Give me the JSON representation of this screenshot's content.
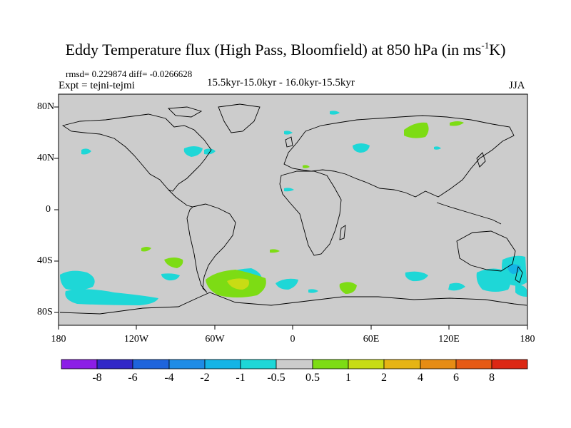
{
  "title": {
    "main": "Eddy Temperature flux (High Pass, Bloomfield) at 850 hPa (in ms",
    "sup": "-1",
    "tail": "K)"
  },
  "stats": "rmsd= 0.229874 diff= -0.0266628",
  "expt": "Expt = tejni-tejmi",
  "period": "15.5kyr-15.0kyr - 16.0kyr-15.5kyr",
  "season": "JJA",
  "map": {
    "background_color": "#cccccc",
    "lat_labels": [
      "80N",
      "40N",
      "0",
      "40S",
      "80S"
    ],
    "lon_labels": [
      "180",
      "120W",
      "60W",
      "0",
      "60E",
      "120E",
      "180"
    ]
  },
  "colorbar": {
    "labels": [
      "-8",
      "-6",
      "-4",
      "-2",
      "-1",
      "-0.5",
      "0.5",
      "1",
      "2",
      "4",
      "6",
      "8"
    ],
    "colors": [
      "#8c1ee6",
      "#3228c8",
      "#1e64dc",
      "#1e8ce6",
      "#14b4e6",
      "#1ed7d7",
      "#cccccc",
      "#7ddc14",
      "#c8dc14",
      "#e6b414",
      "#e68c14",
      "#e65a14",
      "#dc2814"
    ]
  },
  "palette": {
    "cyan": "#1ed7d7",
    "light_blue": "#14b4e6",
    "green": "#7ddc14",
    "yellow_green": "#c8dc14"
  }
}
